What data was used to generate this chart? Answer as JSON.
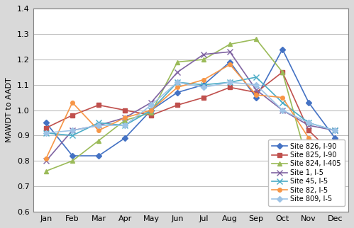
{
  "months": [
    "Jan",
    "Feb",
    "Mar",
    "Apr",
    "May",
    "Jun",
    "Jul",
    "Aug",
    "Sep",
    "Oct",
    "Nov",
    "Dec"
  ],
  "series": [
    {
      "label": "Site 826, I-90",
      "color": "#4472C4",
      "marker": "D",
      "markersize": 4,
      "values": [
        0.95,
        0.82,
        0.82,
        0.89,
        1.0,
        1.07,
        1.1,
        1.19,
        1.05,
        1.24,
        1.03,
        0.89
      ]
    },
    {
      "label": "Site 825, I-90",
      "color": "#C0504D",
      "marker": "s",
      "markersize": 4,
      "values": [
        0.93,
        0.98,
        1.02,
        1.0,
        0.98,
        1.02,
        1.05,
        1.09,
        1.07,
        1.15,
        0.92,
        0.82
      ]
    },
    {
      "label": "Site 824, I-405",
      "color": "#9BBB59",
      "marker": "^",
      "markersize": 5,
      "values": [
        0.76,
        0.8,
        0.88,
        0.96,
        0.99,
        1.19,
        1.2,
        1.26,
        1.28,
        1.15,
        0.78,
        0.78
      ]
    },
    {
      "label": "Site 1, I-5",
      "color": "#8064A2",
      "marker": "x",
      "markersize": 6,
      "values": [
        0.8,
        0.92,
        0.94,
        0.97,
        1.03,
        1.15,
        1.22,
        1.23,
        1.08,
        1.0,
        0.94,
        0.92
      ]
    },
    {
      "label": "Site 45, I-5",
      "color": "#4BACC6",
      "marker": "x",
      "markersize": 6,
      "values": [
        0.91,
        0.9,
        0.95,
        0.94,
        1.0,
        1.11,
        1.1,
        1.11,
        1.13,
        1.03,
        0.95,
        0.92
      ]
    },
    {
      "label": "Site 82, I-5",
      "color": "#F79646",
      "marker": "o",
      "markersize": 4,
      "values": [
        0.81,
        1.03,
        0.92,
        0.97,
        1.0,
        1.09,
        1.12,
        1.18,
        1.06,
        1.05,
        0.89,
        0.83
      ]
    },
    {
      "label": "Site 809, I-5",
      "color": "#9DC3E6",
      "marker": "D",
      "markersize": 4,
      "values": [
        0.91,
        0.92,
        0.94,
        0.94,
        1.02,
        1.11,
        1.09,
        1.11,
        1.1,
        1.0,
        0.95,
        0.92
      ]
    }
  ],
  "ylim": [
    0.6,
    1.4
  ],
  "yticks": [
    0.6,
    0.7,
    0.8,
    0.9,
    1.0,
    1.1,
    1.2,
    1.3,
    1.4
  ],
  "ylabel": "MAWDT to AADT",
  "plot_bg_color": "#FFFFFF",
  "fig_bg_color": "#D9D9D9",
  "grid_color": "#C0C0C0",
  "legend_fontsize": 7,
  "axis_fontsize": 8,
  "spine_color": "#808080",
  "linewidth": 1.2
}
